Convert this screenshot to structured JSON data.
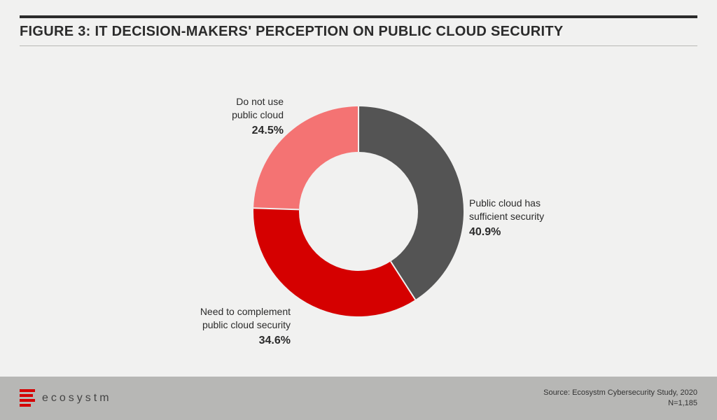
{
  "figure": {
    "title": "FIGURE 3: IT DECISION-MAKERS' PERCEPTION ON PUBLIC CLOUD SECURITY",
    "type": "donut",
    "background_color": "#f1f1f0",
    "title_color": "#2b2b2b",
    "title_fontsize": 20,
    "top_rule_color": "#2b2b2b",
    "sub_rule_color": "#b8b8b5",
    "donut": {
      "outer_radius": 150,
      "inner_radius": 85,
      "center_fill": "#f1f1f0",
      "start_angle_deg": 0,
      "slices": [
        {
          "key": "sufficient",
          "label_line1": "Public cloud has",
          "label_line2": "sufficient security",
          "value": 40.9,
          "percent_text": "40.9%",
          "color": "#545454"
        },
        {
          "key": "complement",
          "label_line1": "Need to complement",
          "label_line2": "public cloud security",
          "value": 34.6,
          "percent_text": "34.6%",
          "color": "#d50000"
        },
        {
          "key": "no_use",
          "label_line1": "Do not use",
          "label_line2": "public cloud",
          "value": 24.5,
          "percent_text": "24.5%",
          "color": "#f47373"
        }
      ],
      "separator_stroke": "#f1f1f0",
      "separator_width": 2
    },
    "label_fontsize": 14,
    "percent_fontsize": 16,
    "label_color": "#2b2b2b"
  },
  "footer": {
    "background_color": "#b7b7b5",
    "logo_text": "ecosystm",
    "logo_color": "#d50000",
    "source_line1": "Source: Ecosystm Cybersecurity Study, 2020",
    "source_line2": "N=1,185",
    "source_fontsize": 11,
    "source_color": "#333333"
  }
}
